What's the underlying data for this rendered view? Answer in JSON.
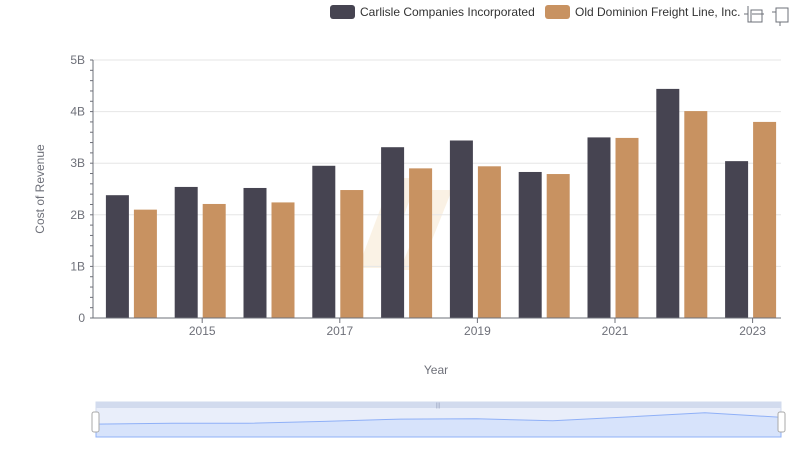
{
  "colors": {
    "series": [
      "#464451",
      "#c89261"
    ],
    "grid": "#e6e6e6",
    "axis": "#6e7079",
    "zoom_fill": "#d7e3fb",
    "zoom_border": "#d2dbee",
    "zoom_line": "#8fb0f7",
    "watermark": "#f6e7cf"
  },
  "toolbar": {
    "zoom_icon": "zoom-select-icon",
    "restore_icon": "zoom-restore-icon"
  },
  "chart_data": {
    "type": "bar",
    "xlabel": "Year",
    "ylabel": "Cost of Revenue",
    "categories": [
      "2014",
      "2015",
      "2016",
      "2017",
      "2018",
      "2019",
      "2020",
      "2021",
      "2022",
      "2023"
    ],
    "x_tick_labels": [
      "2015",
      "2017",
      "2019",
      "2021",
      "2023"
    ],
    "y_tick_labels": [
      "0",
      "1B",
      "2B",
      "3B",
      "4B",
      "5B"
    ],
    "y_ticks": [
      0,
      1000000000,
      2000000000,
      3000000000,
      4000000000,
      5000000000
    ],
    "ylim": [
      0,
      5000000000
    ],
    "grid": true,
    "legend_position": "top-right",
    "series": [
      {
        "name": "Carlisle Companies Incorporated",
        "values": [
          2380000000,
          2540000000,
          2520000000,
          2950000000,
          3310000000,
          3440000000,
          2830000000,
          3500000000,
          4440000000,
          3040000000
        ]
      },
      {
        "name": "Old Dominion Freight Line, Inc.",
        "values": [
          2100000000,
          2210000000,
          2240000000,
          2480000000,
          2900000000,
          2940000000,
          2790000000,
          3490000000,
          4010000000,
          3800000000
        ]
      }
    ]
  }
}
